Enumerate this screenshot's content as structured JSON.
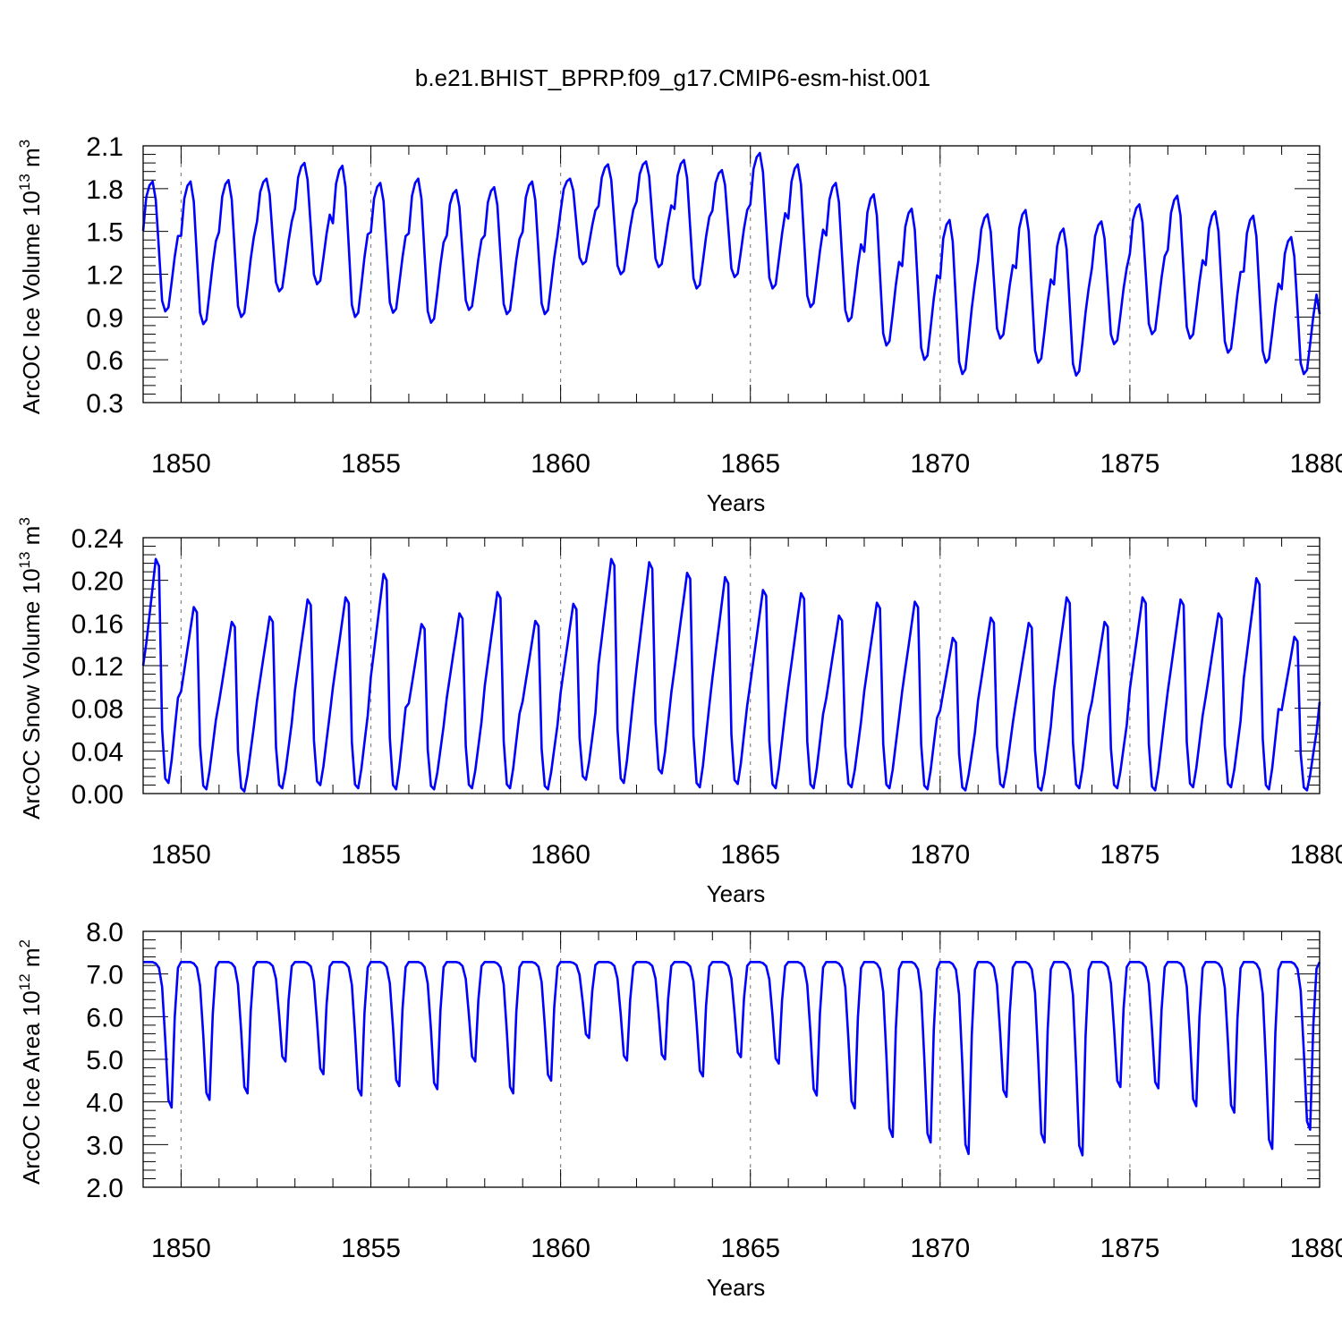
{
  "figure": {
    "title": "b.e21.BHIST_BPRP.f09_g17.CMIP6-esm-hist.001",
    "line_color": "#0000ff",
    "grid_color": "#888888"
  },
  "chart_data": [
    {
      "type": "line",
      "title": "",
      "xlabel": "Years",
      "ylabel": {
        "main": "ArcOC Ice Volume 10",
        "exp": "13",
        "unit": " m",
        "unit_exp": "3"
      },
      "xlim": [
        1849,
        1880
      ],
      "ylim": [
        0.3,
        2.1
      ],
      "xticks": [
        1850,
        1855,
        1860,
        1865,
        1870,
        1875,
        1880
      ],
      "yticks": [
        0.3,
        0.6,
        0.9,
        1.2,
        1.5,
        1.8,
        2.1
      ],
      "ytick_labels": [
        "0.3",
        "0.6",
        "0.9",
        "1.2",
        "1.5",
        "1.8",
        "2.1"
      ],
      "grid": "vertical dashed at major x ticks",
      "series": [
        {
          "start": 1849.0,
          "maxima": [
            1.85,
            1.85,
            1.86,
            1.87,
            1.98,
            1.96,
            1.84,
            1.87,
            1.79,
            1.81,
            1.85,
            1.87,
            1.97,
            1.99,
            2.0,
            1.93,
            2.05,
            1.97,
            1.84,
            1.76,
            1.66,
            1.58,
            1.62,
            1.65,
            1.52,
            1.57,
            1.69,
            1.75,
            1.64,
            1.61,
            1.46
          ],
          "minima": [
            0.94,
            0.85,
            0.9,
            1.08,
            1.13,
            0.9,
            0.93,
            0.86,
            0.95,
            0.92,
            0.92,
            1.27,
            1.2,
            1.25,
            1.1,
            1.18,
            1.1,
            0.97,
            0.87,
            0.7,
            0.6,
            0.5,
            0.75,
            0.58,
            0.49,
            0.71,
            0.78,
            0.75,
            0.65,
            0.58,
            0.5
          ],
          "end_value": 0.92
        }
      ]
    },
    {
      "type": "line",
      "title": "",
      "xlabel": "Years",
      "ylabel": {
        "main": "ArcOC Snow Volume 10",
        "exp": "13",
        "unit": " m",
        "unit_exp": "3"
      },
      "xlim": [
        1849,
        1880
      ],
      "ylim": [
        0.0,
        0.24
      ],
      "xticks": [
        1850,
        1855,
        1860,
        1865,
        1870,
        1875,
        1880
      ],
      "yticks": [
        0.0,
        0.04,
        0.08,
        0.12,
        0.16,
        0.2,
        0.24
      ],
      "ytick_labels": [
        "0.00",
        "0.04",
        "0.08",
        "0.12",
        "0.16",
        "0.20",
        "0.24"
      ],
      "grid": "vertical dashed at major x ticks",
      "series": [
        {
          "start": 1849.0,
          "start_value": 0.12,
          "maxima": [
            0.22,
            0.175,
            0.161,
            0.166,
            0.182,
            0.184,
            0.206,
            0.159,
            0.169,
            0.189,
            0.162,
            0.178,
            0.22,
            0.217,
            0.207,
            0.203,
            0.191,
            0.188,
            0.167,
            0.179,
            0.18,
            0.146,
            0.165,
            0.16,
            0.184,
            0.161,
            0.184,
            0.182,
            0.169,
            0.202,
            0.147
          ],
          "minima": [
            0.01,
            0.004,
            0.002,
            0.005,
            0.008,
            0.005,
            0.004,
            0.004,
            0.005,
            0.005,
            0.004,
            0.013,
            0.01,
            0.019,
            0.006,
            0.009,
            0.005,
            0.005,
            0.006,
            0.005,
            0.004,
            0.003,
            0.006,
            0.003,
            0.005,
            0.005,
            0.003,
            0.006,
            0.006,
            0.004,
            0.003
          ],
          "end_value": 0.086
        }
      ]
    },
    {
      "type": "line",
      "title": "",
      "xlabel": "Years",
      "ylabel": {
        "main": "ArcOC Ice Area 10",
        "exp": "12",
        "unit": " m",
        "unit_exp": "2"
      },
      "xlim": [
        1849,
        1880
      ],
      "ylim": [
        2.0,
        8.0
      ],
      "xticks": [
        1850,
        1855,
        1860,
        1865,
        1870,
        1875,
        1880
      ],
      "yticks": [
        2.0,
        3.0,
        4.0,
        5.0,
        6.0,
        7.0,
        8.0
      ],
      "ytick_labels": [
        "2.0",
        "3.0",
        "4.0",
        "5.0",
        "6.0",
        "7.0",
        "8.0"
      ],
      "grid": "vertical dashed at major x ticks",
      "series": [
        {
          "start": 1849.0,
          "plateau": 7.28,
          "minima": [
            3.87,
            4.05,
            4.2,
            4.95,
            4.65,
            4.15,
            4.37,
            4.3,
            4.95,
            4.2,
            4.5,
            5.5,
            4.97,
            5.0,
            4.6,
            5.05,
            4.9,
            4.15,
            3.85,
            3.18,
            3.05,
            2.78,
            4.12,
            3.05,
            2.75,
            4.35,
            4.32,
            3.9,
            3.75,
            2.9,
            3.35
          ],
          "end_value": 7.28
        }
      ]
    }
  ]
}
